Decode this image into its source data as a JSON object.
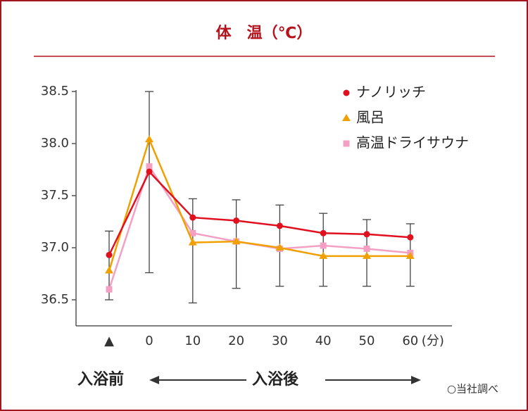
{
  "chart_data": {
    "type": "line",
    "title": "体　温（℃）",
    "categories": [
      "▲",
      "0",
      "10",
      "20",
      "30",
      "40",
      "50",
      "60"
    ],
    "x_unit": "(分)",
    "series": [
      {
        "name": "ナノリッチ",
        "color": "#e0101e",
        "marker": "circle",
        "values": [
          36.93,
          37.73,
          37.29,
          37.26,
          37.21,
          37.14,
          37.13,
          37.1
        ]
      },
      {
        "name": "風呂",
        "color": "#f0a000",
        "marker": "triangle",
        "values": [
          36.78,
          38.04,
          37.05,
          37.06,
          37.0,
          36.92,
          36.92,
          36.92
        ]
      },
      {
        "name": "高温ドライサウナ",
        "color": "#f4a0c4",
        "marker": "square",
        "values": [
          36.6,
          37.78,
          37.14,
          37.06,
          36.99,
          37.02,
          36.99,
          36.95
        ]
      }
    ],
    "errors": {
      "low": [
        36.5,
        36.76,
        36.47,
        36.61,
        36.63,
        36.63,
        36.63,
        36.63
      ],
      "high": [
        37.16,
        38.5,
        37.47,
        37.46,
        37.41,
        37.33,
        37.27,
        37.23
      ]
    },
    "ylim": [
      36.25,
      38.5
    ],
    "yticks": [
      {
        "value": 36.5,
        "label": "36.5"
      },
      {
        "value": 37,
        "label": "37.0"
      },
      {
        "value": 37.5,
        "label": "37.5"
      },
      {
        "value": 38,
        "label": "38.0"
      },
      {
        "value": 38.5,
        "label": "38.5"
      }
    ],
    "legend": "top-right",
    "before_label": "入浴前",
    "after_label": "入浴後",
    "source": "○当社調べ"
  }
}
